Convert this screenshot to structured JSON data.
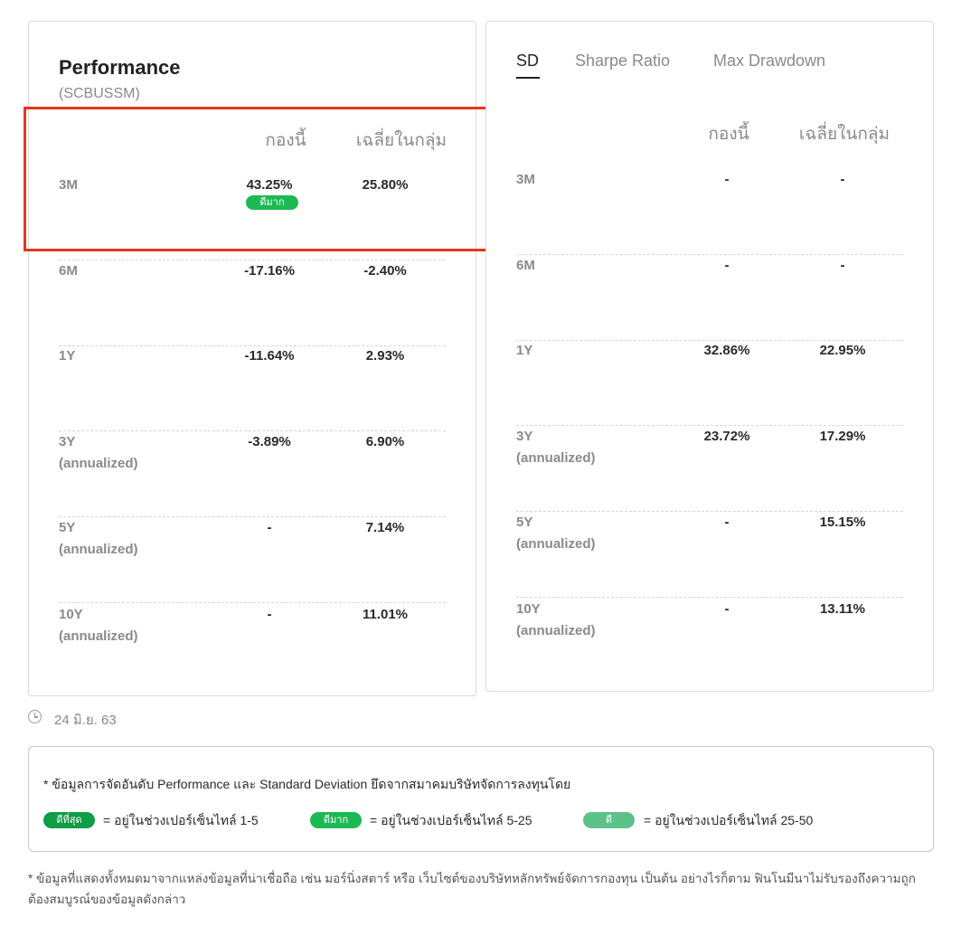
{
  "performance": {
    "title": "Performance",
    "fund_code": "(SCBUSSM)",
    "col_fund": "กองนี้",
    "col_avg": "เฉลี่ยในกลุ่ม",
    "rows": [
      {
        "period": "3M",
        "note": "",
        "fund": "43.25%",
        "avg": "25.80%",
        "badge": "ดีมาก"
      },
      {
        "period": "6M",
        "note": "",
        "fund": "-17.16%",
        "avg": "-2.40%"
      },
      {
        "period": "1Y",
        "note": "",
        "fund": "-11.64%",
        "avg": "2.93%"
      },
      {
        "period": "3Y",
        "note": "(annualized)",
        "fund": "-3.89%",
        "avg": "6.90%"
      },
      {
        "period": "5Y",
        "note": "(annualized)",
        "fund": "-",
        "avg": "7.14%"
      },
      {
        "period": "10Y",
        "note": "(annualized)",
        "fund": "-",
        "avg": "11.01%"
      }
    ]
  },
  "risk": {
    "tabs": [
      {
        "label": "SD",
        "active": true
      },
      {
        "label": "Sharpe Ratio",
        "active": false
      },
      {
        "label": "Max Drawdown",
        "active": false
      }
    ],
    "col_fund": "กองนี้",
    "col_avg": "เฉลี่ยในกลุ่ม",
    "rows": [
      {
        "period": "3M",
        "note": "",
        "fund": "-",
        "avg": "-"
      },
      {
        "period": "6M",
        "note": "",
        "fund": "-",
        "avg": "-"
      },
      {
        "period": "1Y",
        "note": "",
        "fund": "32.86%",
        "avg": "22.95%"
      },
      {
        "period": "3Y",
        "note": "(annualized)",
        "fund": "23.72%",
        "avg": "17.29%"
      },
      {
        "period": "5Y",
        "note": "(annualized)",
        "fund": "-",
        "avg": "15.15%"
      },
      {
        "period": "10Y",
        "note": "(annualized)",
        "fund": "-",
        "avg": "13.11%"
      }
    ]
  },
  "updated_date": "24 มิ.ย. 63",
  "legend": {
    "note": "* ข้อมูลการจัดอันดับ Performance และ Standard Deviation ยึดจากสมาคมบริษัทจัดการลงทุนโดย",
    "items": [
      {
        "badge": "ดีที่สุด",
        "text": "= อยู่ในช่วงเปอร์เซ็นไทล์ 1-5",
        "color": "#0f9d46"
      },
      {
        "badge": "ดีมาก",
        "text": "= อยู่ในช่วงเปอร์เซ็นไทล์ 5-25",
        "color": "#1db954"
      },
      {
        "badge": "ดี",
        "text": "= อยู่ในช่วงเปอร์เซ็นไทล์ 25-50",
        "color": "#5cc28a"
      }
    ]
  },
  "disclaimer": "* ข้อมูลที่แสดงทั้งหมดมาจากแหล่งข้อมูลที่น่าเชื่อถือ เช่น มอร์นิ่งสตาร์ หรือ เว็บไซต์ของบริษัทหลักทรัพย์จัดการกองทุน เป็นต้น อย่างไรก็ตาม ฟินโนมีนาไม่รับรองถึงความถูกต้องสมบูรณ์ของข้อมูลดังกล่าว"
}
